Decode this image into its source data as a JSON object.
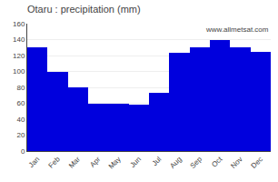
{
  "chart_data": {
    "type": "bar",
    "title": "Otaru : precipitation (mm)",
    "categories": [
      "Jan",
      "Feb",
      "Mar",
      "Apr",
      "May",
      "Jun",
      "Jul",
      "Aug",
      "Sep",
      "Oct",
      "Nov",
      "Dec"
    ],
    "values": [
      130,
      100,
      80,
      60,
      60,
      58,
      73,
      123,
      130,
      140,
      130,
      125
    ],
    "color": "#0000DD",
    "ylim": [
      0,
      160
    ],
    "yticks": [
      0,
      20,
      40,
      60,
      80,
      100,
      120,
      140,
      160
    ],
    "grid": true,
    "annotations": [
      "www.allmetsat.com"
    ]
  }
}
